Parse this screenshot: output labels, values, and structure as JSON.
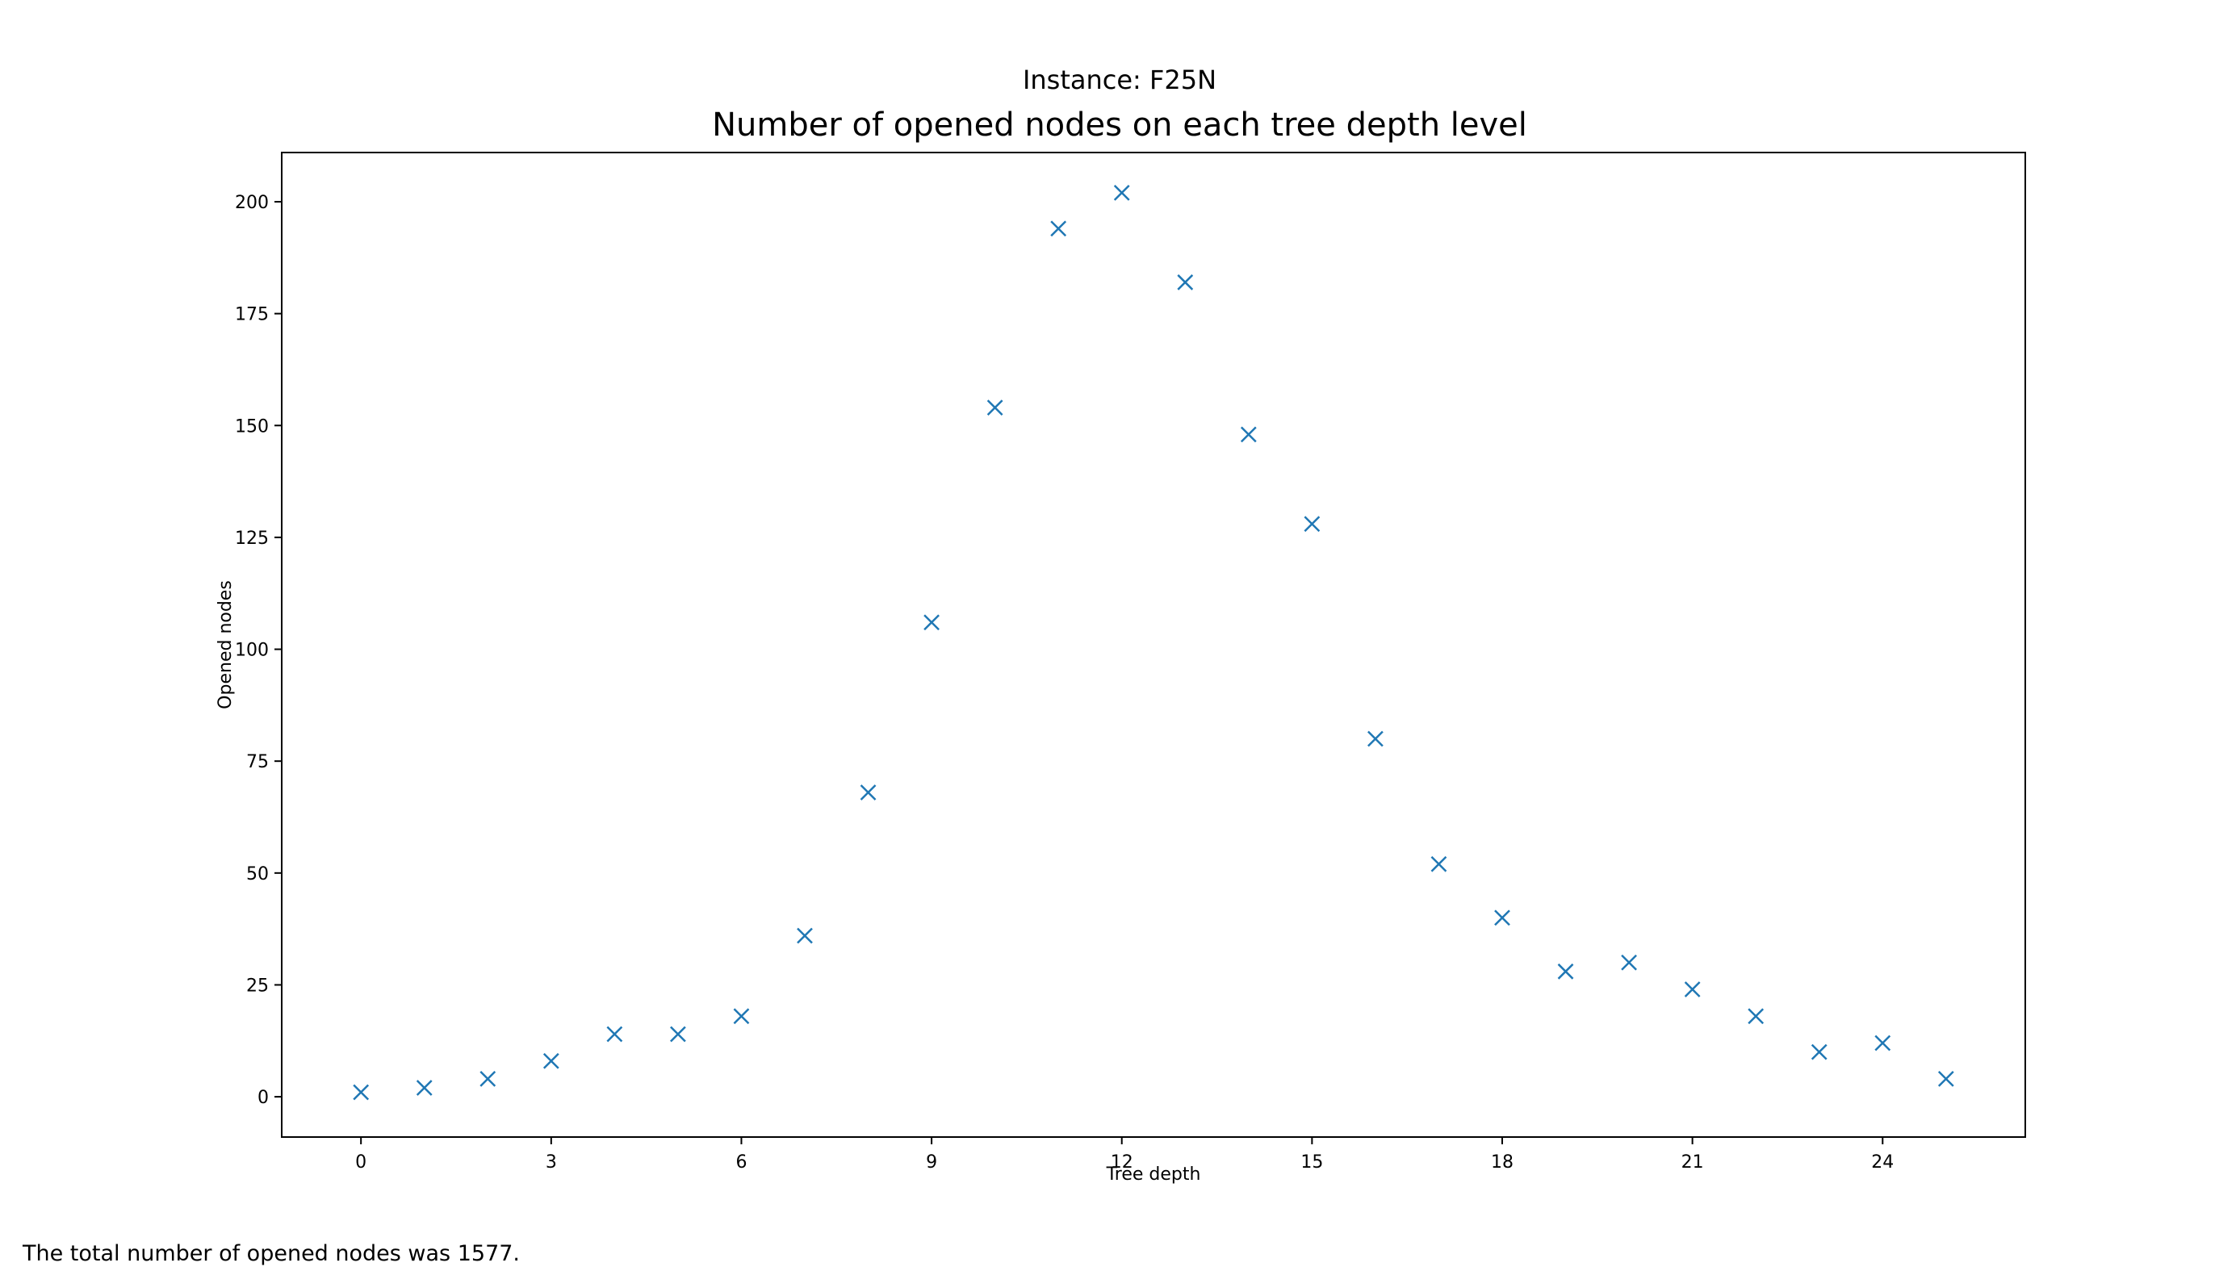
{
  "suptitle": "Instance: F25N",
  "chart_data": {
    "type": "scatter",
    "title": "Number of opened nodes on each tree depth level",
    "xlabel": "Tree depth",
    "ylabel": "Opened nodes",
    "xlim": [
      -1.25,
      26.25
    ],
    "ylim": [
      -9,
      211
    ],
    "xticks": [
      0,
      3,
      6,
      9,
      12,
      15,
      18,
      21,
      24
    ],
    "yticks": [
      0,
      25,
      50,
      75,
      100,
      125,
      150,
      175,
      200
    ],
    "grid": false,
    "legend": "none",
    "marker": "x",
    "color": "#1f77b4",
    "x": [
      0,
      1,
      2,
      3,
      4,
      5,
      6,
      7,
      8,
      9,
      10,
      11,
      12,
      13,
      14,
      15,
      16,
      17,
      18,
      19,
      20,
      21,
      22,
      23,
      24,
      25
    ],
    "y": [
      1,
      2,
      4,
      8,
      14,
      14,
      18,
      36,
      68,
      106,
      154,
      194,
      202,
      182,
      148,
      128,
      80,
      52,
      40,
      28,
      30,
      24,
      18,
      10,
      12,
      4
    ]
  },
  "footer": {
    "text": "The total number of opened nodes was 1577."
  }
}
